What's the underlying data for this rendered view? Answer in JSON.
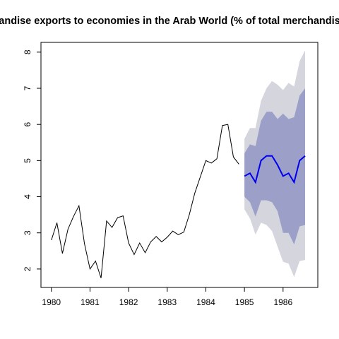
{
  "chart_data": {
    "type": "forecast",
    "title": "andise exports to economies in the Arab World (% of total merchandis",
    "xlim": [
      1979.73,
      1986.9
    ],
    "ylim": [
      1.49,
      8.27
    ],
    "xticks": [
      1980,
      1981,
      1982,
      1983,
      1984,
      1985,
      1986
    ],
    "yticks": [
      2,
      3,
      4,
      5,
      6,
      7,
      8
    ],
    "history": {
      "color": "#000000",
      "x": [
        1980,
        1980.143,
        1980.286,
        1980.429,
        1980.571,
        1980.714,
        1980.857,
        1981,
        1981.143,
        1981.286,
        1981.429,
        1981.571,
        1981.714,
        1981.857,
        1982,
        1982.143,
        1982.286,
        1982.429,
        1982.571,
        1982.714,
        1982.857,
        1983,
        1983.143,
        1983.286,
        1983.429,
        1983.571,
        1983.714,
        1983.857,
        1984,
        1984.143,
        1984.286,
        1984.429,
        1984.571,
        1984.714,
        1984.857
      ],
      "values": [
        2.8,
        3.28,
        2.43,
        3.1,
        3.45,
        3.75,
        2.7,
        2.0,
        2.22,
        1.75,
        3.33,
        3.15,
        3.42,
        3.47,
        2.72,
        2.4,
        2.72,
        2.45,
        2.75,
        2.9,
        2.75,
        2.88,
        3.05,
        2.95,
        3.02,
        3.5,
        4.1,
        4.55,
        5.0,
        4.93,
        5.05,
        5.97,
        6.0,
        5.1,
        4.9
      ]
    },
    "forecast": {
      "color": "#0000ee",
      "x": [
        1985,
        1985.143,
        1985.286,
        1985.429,
        1985.571,
        1985.714,
        1985.857,
        1986,
        1986.143,
        1986.286,
        1986.429,
        1986.571
      ],
      "values": [
        4.57,
        4.65,
        4.4,
        5.0,
        5.13,
        5.13,
        4.88,
        4.57,
        4.65,
        4.4,
        5.0,
        5.13
      ]
    },
    "bands": [
      {
        "color": "#d5d5dd",
        "upper": [
          5.6,
          5.9,
          5.9,
          6.65,
          7.0,
          7.2,
          7.1,
          6.95,
          7.15,
          7.05,
          7.75,
          8.05
        ],
        "lower": [
          3.65,
          3.4,
          2.95,
          3.28,
          3.22,
          3.05,
          2.62,
          2.2,
          2.15,
          1.78,
          2.22,
          2.25
        ]
      },
      {
        "color": "#9c9fc8",
        "upper": [
          5.2,
          5.45,
          5.4,
          6.1,
          6.35,
          6.35,
          6.15,
          6.3,
          6.15,
          6.2,
          6.8,
          7.0
        ],
        "lower": [
          4.0,
          3.85,
          3.45,
          3.9,
          3.9,
          3.85,
          3.6,
          3.0,
          3.0,
          2.68,
          3.18,
          3.22
        ]
      }
    ]
  }
}
